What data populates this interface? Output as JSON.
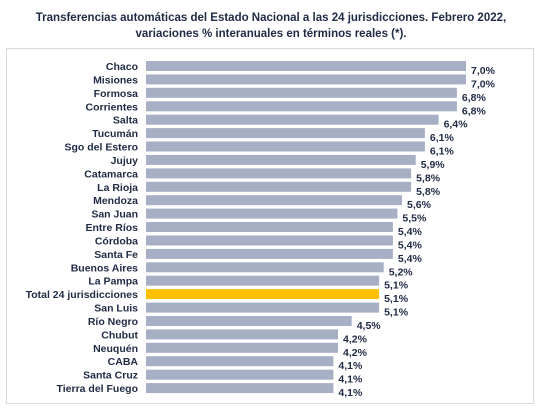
{
  "chart_data": {
    "type": "bar",
    "orientation": "horizontal",
    "title_line1": "Transferencias automáticas del Estado Nacional a las 24 jurisdicciones. Febrero 2022,",
    "title_line2": "variaciones % interanuales en términos reales (*).",
    "categories": [
      "Chaco",
      "Misiones",
      "Formosa",
      "Corrientes",
      "Salta",
      "Tucumán",
      "Sgo del Estero",
      "Jujuy",
      "Catamarca",
      "La Rioja",
      "Mendoza",
      "San Juan",
      "Entre Ríos",
      "Córdoba",
      "Santa Fe",
      "Buenos Aires",
      "La Pampa",
      "Total 24 jurisdicciones",
      "San Luis",
      "Río Negro",
      "Chubut",
      "Neuquén",
      "CABA",
      "Santa Cruz",
      "Tierra del Fuego"
    ],
    "values": [
      7.0,
      7.0,
      6.8,
      6.8,
      6.4,
      6.1,
      6.1,
      5.9,
      5.8,
      5.8,
      5.6,
      5.5,
      5.4,
      5.4,
      5.4,
      5.2,
      5.1,
      5.1,
      5.1,
      4.5,
      4.2,
      4.2,
      4.1,
      4.1,
      4.1
    ],
    "value_labels": [
      "7,0%",
      "7,0%",
      "6,8%",
      "6,8%",
      "6,4%",
      "6,1%",
      "6,1%",
      "5,9%",
      "5,8%",
      "5,8%",
      "5,6%",
      "5,5%",
      "5,4%",
      "5,4%",
      "5,4%",
      "5,2%",
      "5,1%",
      "5,1%",
      "5,1%",
      "4,5%",
      "4,2%",
      "4,2%",
      "4,1%",
      "4,1%",
      "4,1%"
    ],
    "highlight_category": "Total 24 jurisdicciones",
    "colors": {
      "bar": "#a7afc4",
      "highlight": "#ffc000",
      "text": "#1f2a44"
    },
    "xlim": [
      0,
      7.0
    ],
    "grid": false,
    "legend": "none"
  }
}
